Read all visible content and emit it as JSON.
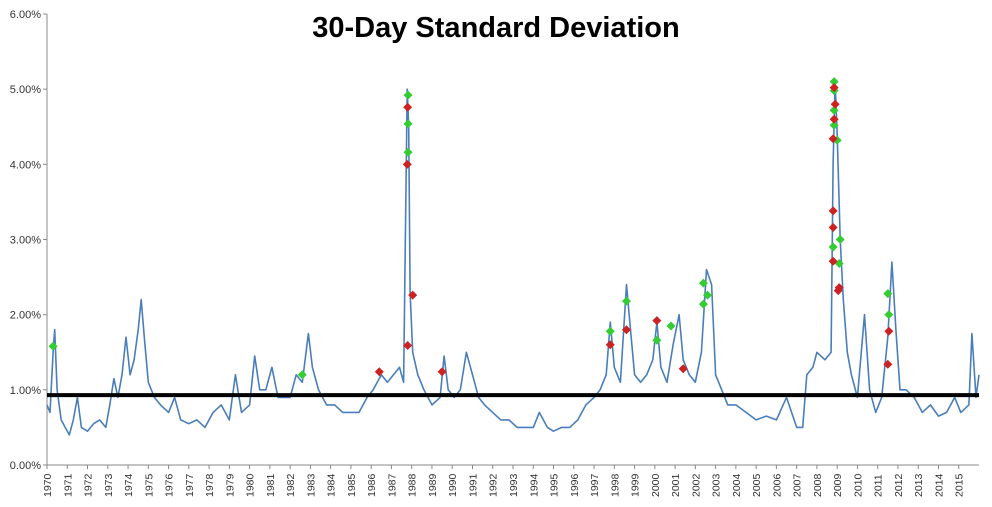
{
  "chart_data": {
    "type": "line",
    "title": "30-Day Standard Deviation",
    "xlabel": "",
    "ylabel": "",
    "xlim": [
      1970,
      2016
    ],
    "ylim": [
      0,
      6
    ],
    "y_ticks": [
      "0.00%",
      "1.00%",
      "2.00%",
      "3.00%",
      "4.00%",
      "5.00%",
      "6.00%"
    ],
    "x_ticks": [
      "1970",
      "1971",
      "1972",
      "1973",
      "1974",
      "1975",
      "1976",
      "1977",
      "1978",
      "1979",
      "1980",
      "1981",
      "1982",
      "1983",
      "1984",
      "1985",
      "1986",
      "1987",
      "1988",
      "1989",
      "1990",
      "1991",
      "1992",
      "1993",
      "1994",
      "1995",
      "1996",
      "1997",
      "1998",
      "1999",
      "2000",
      "2001",
      "2002",
      "2003",
      "2004",
      "2005",
      "2006",
      "2007",
      "2008",
      "2009",
      "2010",
      "2011",
      "2012",
      "2013",
      "2014",
      "2015"
    ],
    "grid": false,
    "legend": "none",
    "reference_line": {
      "value": 0.93,
      "color": "#000000"
    },
    "series": [
      {
        "type": "line",
        "color": "#4a7ebb",
        "points": [
          [
            1970.0,
            0.8
          ],
          [
            1970.15,
            0.7
          ],
          [
            1970.3,
            1.5
          ],
          [
            1970.38,
            1.8
          ],
          [
            1970.5,
            1.0
          ],
          [
            1970.7,
            0.6
          ],
          [
            1970.9,
            0.5
          ],
          [
            1971.1,
            0.4
          ],
          [
            1971.3,
            0.6
          ],
          [
            1971.5,
            0.9
          ],
          [
            1971.7,
            0.5
          ],
          [
            1972.0,
            0.45
          ],
          [
            1972.3,
            0.55
          ],
          [
            1972.6,
            0.6
          ],
          [
            1972.9,
            0.5
          ],
          [
            1973.1,
            0.8
          ],
          [
            1973.3,
            1.15
          ],
          [
            1973.5,
            0.9
          ],
          [
            1973.7,
            1.2
          ],
          [
            1973.9,
            1.7
          ],
          [
            1974.1,
            1.2
          ],
          [
            1974.3,
            1.4
          ],
          [
            1974.5,
            1.8
          ],
          [
            1974.65,
            2.2
          ],
          [
            1974.8,
            1.7
          ],
          [
            1975.0,
            1.1
          ],
          [
            1975.3,
            0.9
          ],
          [
            1975.6,
            0.8
          ],
          [
            1976.0,
            0.7
          ],
          [
            1976.3,
            0.9
          ],
          [
            1976.6,
            0.6
          ],
          [
            1977.0,
            0.55
          ],
          [
            1977.4,
            0.6
          ],
          [
            1977.8,
            0.5
          ],
          [
            1978.2,
            0.7
          ],
          [
            1978.6,
            0.8
          ],
          [
            1979.0,
            0.6
          ],
          [
            1979.3,
            1.2
          ],
          [
            1979.6,
            0.7
          ],
          [
            1980.0,
            0.8
          ],
          [
            1980.25,
            1.45
          ],
          [
            1980.5,
            1.0
          ],
          [
            1980.8,
            1.0
          ],
          [
            1981.1,
            1.3
          ],
          [
            1981.4,
            0.9
          ],
          [
            1981.7,
            0.9
          ],
          [
            1982.0,
            0.9
          ],
          [
            1982.3,
            1.2
          ],
          [
            1982.6,
            1.1
          ],
          [
            1982.9,
            1.75
          ],
          [
            1983.1,
            1.3
          ],
          [
            1983.4,
            1.0
          ],
          [
            1983.8,
            0.8
          ],
          [
            1984.2,
            0.8
          ],
          [
            1984.6,
            0.7
          ],
          [
            1985.0,
            0.7
          ],
          [
            1985.4,
            0.7
          ],
          [
            1985.8,
            0.9
          ],
          [
            1986.1,
            1.0
          ],
          [
            1986.5,
            1.2
          ],
          [
            1986.8,
            1.1
          ],
          [
            1987.1,
            1.2
          ],
          [
            1987.4,
            1.3
          ],
          [
            1987.6,
            1.1
          ],
          [
            1987.78,
            5.0
          ],
          [
            1987.85,
            4.5
          ],
          [
            1987.92,
            2.3
          ],
          [
            1988.05,
            1.5
          ],
          [
            1988.3,
            1.2
          ],
          [
            1988.6,
            1.0
          ],
          [
            1989.0,
            0.8
          ],
          [
            1989.4,
            0.9
          ],
          [
            1989.6,
            1.45
          ],
          [
            1989.8,
            1.0
          ],
          [
            1990.1,
            0.9
          ],
          [
            1990.4,
            1.0
          ],
          [
            1990.7,
            1.5
          ],
          [
            1991.0,
            1.2
          ],
          [
            1991.3,
            0.9
          ],
          [
            1991.6,
            0.8
          ],
          [
            1992.0,
            0.7
          ],
          [
            1992.4,
            0.6
          ],
          [
            1992.8,
            0.6
          ],
          [
            1993.2,
            0.5
          ],
          [
            1993.6,
            0.5
          ],
          [
            1994.0,
            0.5
          ],
          [
            1994.3,
            0.7
          ],
          [
            1994.7,
            0.5
          ],
          [
            1995.0,
            0.45
          ],
          [
            1995.4,
            0.5
          ],
          [
            1995.8,
            0.5
          ],
          [
            1996.2,
            0.6
          ],
          [
            1996.6,
            0.8
          ],
          [
            1997.0,
            0.9
          ],
          [
            1997.3,
            1.0
          ],
          [
            1997.6,
            1.2
          ],
          [
            1997.8,
            1.9
          ],
          [
            1998.0,
            1.3
          ],
          [
            1998.3,
            1.1
          ],
          [
            1998.6,
            2.4
          ],
          [
            1998.8,
            1.8
          ],
          [
            1999.0,
            1.2
          ],
          [
            1999.3,
            1.1
          ],
          [
            1999.6,
            1.2
          ],
          [
            1999.9,
            1.4
          ],
          [
            2000.1,
            1.9
          ],
          [
            2000.3,
            1.3
          ],
          [
            2000.6,
            1.1
          ],
          [
            2000.9,
            1.6
          ],
          [
            2001.2,
            2.0
          ],
          [
            2001.4,
            1.4
          ],
          [
            2001.7,
            1.2
          ],
          [
            2002.0,
            1.1
          ],
          [
            2002.3,
            1.5
          ],
          [
            2002.55,
            2.6
          ],
          [
            2002.8,
            2.4
          ],
          [
            2003.0,
            1.2
          ],
          [
            2003.3,
            1.0
          ],
          [
            2003.6,
            0.8
          ],
          [
            2004.0,
            0.8
          ],
          [
            2004.5,
            0.7
          ],
          [
            2005.0,
            0.6
          ],
          [
            2005.5,
            0.65
          ],
          [
            2006.0,
            0.6
          ],
          [
            2006.5,
            0.9
          ],
          [
            2007.0,
            0.5
          ],
          [
            2007.3,
            0.5
          ],
          [
            2007.5,
            1.2
          ],
          [
            2007.8,
            1.3
          ],
          [
            2008.0,
            1.5
          ],
          [
            2008.4,
            1.4
          ],
          [
            2008.7,
            1.5
          ],
          [
            2008.8,
            4.0
          ],
          [
            2008.9,
            5.1
          ],
          [
            2009.0,
            4.4
          ],
          [
            2009.15,
            3.0
          ],
          [
            2009.3,
            2.2
          ],
          [
            2009.5,
            1.5
          ],
          [
            2009.7,
            1.2
          ],
          [
            2010.0,
            0.9
          ],
          [
            2010.35,
            2.0
          ],
          [
            2010.6,
            1.0
          ],
          [
            2010.9,
            0.7
          ],
          [
            2011.2,
            0.9
          ],
          [
            2011.5,
            1.7
          ],
          [
            2011.7,
            2.7
          ],
          [
            2011.9,
            1.8
          ],
          [
            2012.1,
            1.0
          ],
          [
            2012.4,
            1.0
          ],
          [
            2012.8,
            0.9
          ],
          [
            2013.2,
            0.7
          ],
          [
            2013.6,
            0.8
          ],
          [
            2014.0,
            0.65
          ],
          [
            2014.4,
            0.7
          ],
          [
            2014.8,
            0.9
          ],
          [
            2015.1,
            0.7
          ],
          [
            2015.5,
            0.8
          ],
          [
            2015.65,
            1.75
          ],
          [
            2015.85,
            0.9
          ],
          [
            2016.0,
            1.2
          ]
        ]
      }
    ],
    "markers": [
      {
        "name": "green",
        "color": "#33cc33",
        "points": [
          [
            1970.3,
            1.58
          ],
          [
            1982.6,
            1.2
          ],
          [
            1987.82,
            4.92
          ],
          [
            1987.82,
            4.54
          ],
          [
            1987.82,
            4.16
          ],
          [
            1997.8,
            1.78
          ],
          [
            1998.6,
            2.18
          ],
          [
            2000.1,
            1.66
          ],
          [
            2000.8,
            1.85
          ],
          [
            2002.4,
            2.42
          ],
          [
            2002.6,
            2.26
          ],
          [
            2002.4,
            2.14
          ],
          [
            2008.85,
            5.1
          ],
          [
            2008.85,
            4.98
          ],
          [
            2008.85,
            4.72
          ],
          [
            2008.85,
            4.52
          ],
          [
            2009.0,
            4.32
          ],
          [
            2008.8,
            2.9
          ],
          [
            2009.15,
            3.0
          ],
          [
            2009.1,
            2.68
          ],
          [
            2011.5,
            2.28
          ],
          [
            2011.55,
            2.0
          ]
        ]
      },
      {
        "name": "red",
        "color": "#cc2222",
        "points": [
          [
            1986.4,
            1.24
          ],
          [
            1987.8,
            4.76
          ],
          [
            1987.78,
            4.0
          ],
          [
            1988.05,
            2.26
          ],
          [
            1987.8,
            1.59
          ],
          [
            1989.5,
            1.24
          ],
          [
            1997.8,
            1.6
          ],
          [
            1998.6,
            1.8
          ],
          [
            2000.1,
            1.92
          ],
          [
            2001.4,
            1.28
          ],
          [
            2008.85,
            5.02
          ],
          [
            2008.9,
            4.8
          ],
          [
            2008.85,
            4.6
          ],
          [
            2008.8,
            4.34
          ],
          [
            2008.8,
            3.38
          ],
          [
            2008.8,
            3.16
          ],
          [
            2008.8,
            2.71
          ],
          [
            2009.1,
            2.36
          ],
          [
            2009.05,
            2.32
          ],
          [
            2011.55,
            1.78
          ],
          [
            2011.5,
            1.34
          ]
        ]
      }
    ]
  }
}
